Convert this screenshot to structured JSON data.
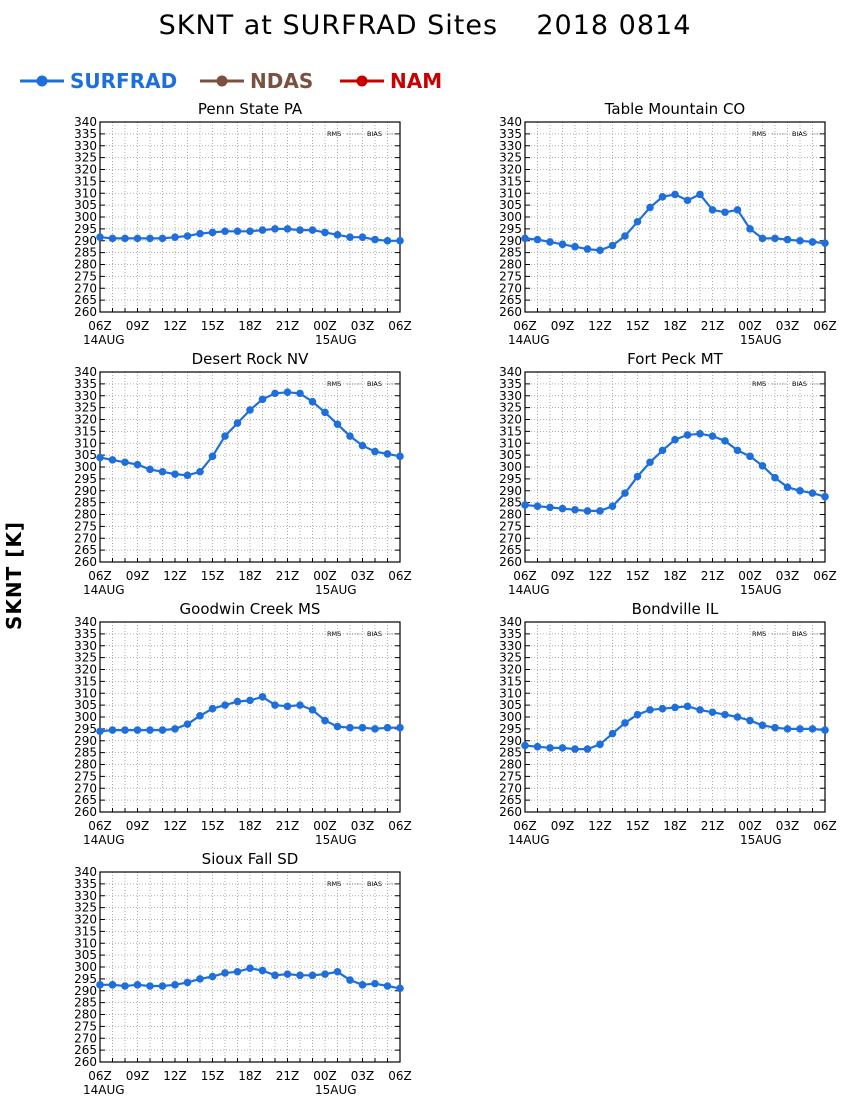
{
  "title": "SKNT at SURFRAD Sites    2018 0814",
  "legend": [
    {
      "label": "SURFRAD",
      "color": "#1e6fdc"
    },
    {
      "label": "NDAS",
      "color": "#7a5040"
    },
    {
      "label": "NAM",
      "color": "#c80000"
    }
  ],
  "y_axis_label": "SKNT [K]",
  "stat_labels": {
    "rms": "RMS",
    "bias": "BIAS"
  },
  "x_ticks": [
    "06Z",
    "09Z",
    "12Z",
    "15Z",
    "18Z",
    "21Z",
    "00Z",
    "03Z",
    "06Z"
  ],
  "x_dates": [
    "14AUG",
    "15AUG"
  ],
  "y_ticks": [
    260,
    265,
    270,
    275,
    280,
    285,
    290,
    295,
    300,
    305,
    310,
    315,
    320,
    325,
    330,
    335,
    340
  ],
  "chart_data": [
    {
      "type": "line",
      "title": "Penn State PA",
      "ylim": [
        260,
        340
      ],
      "grid": true,
      "x_hours": [
        6,
        7,
        8,
        9,
        10,
        11,
        12,
        13,
        14,
        15,
        16,
        17,
        18,
        19,
        20,
        21,
        22,
        23,
        24,
        25,
        26,
        27,
        28,
        29,
        30
      ],
      "series": [
        {
          "name": "SURFRAD",
          "values": [
            291.5,
            291,
            291,
            291,
            291,
            291,
            291.5,
            292,
            293,
            293.5,
            294,
            294,
            294,
            294.5,
            295,
            295,
            294.5,
            294.5,
            293.5,
            292.5,
            291.5,
            291.5,
            290.5,
            290,
            290
          ]
        }
      ]
    },
    {
      "type": "line",
      "title": "Table Mountain CO",
      "ylim": [
        260,
        340
      ],
      "grid": true,
      "x_hours": [
        6,
        7,
        8,
        9,
        10,
        11,
        12,
        13,
        14,
        15,
        16,
        17,
        18,
        19,
        20,
        21,
        22,
        23,
        24,
        25,
        26,
        27,
        28,
        29,
        30
      ],
      "series": [
        {
          "name": "SURFRAD",
          "values": [
            291,
            290.5,
            289.5,
            288.5,
            287.5,
            286.5,
            286,
            288,
            292,
            298,
            304,
            308.5,
            309.5,
            307,
            309.5,
            303,
            302,
            303,
            295,
            291,
            291,
            290.5,
            290,
            289.5,
            289
          ]
        }
      ]
    },
    {
      "type": "line",
      "title": "Desert Rock NV",
      "ylim": [
        260,
        340
      ],
      "grid": true,
      "x_hours": [
        6,
        7,
        8,
        9,
        10,
        11,
        12,
        13,
        14,
        15,
        16,
        17,
        18,
        19,
        20,
        21,
        22,
        23,
        24,
        25,
        26,
        27,
        28,
        29,
        30
      ],
      "series": [
        {
          "name": "SURFRAD",
          "values": [
            304,
            303,
            302,
            301,
            299,
            298,
            297,
            296.5,
            298,
            304.5,
            313,
            318.5,
            324,
            328.5,
            331,
            331.5,
            331,
            327.5,
            323,
            318,
            313,
            309,
            306.5,
            305.5,
            304.5
          ]
        }
      ]
    },
    {
      "type": "line",
      "title": "Fort Peck MT",
      "ylim": [
        260,
        340
      ],
      "grid": true,
      "x_hours": [
        6,
        7,
        8,
        9,
        10,
        11,
        12,
        13,
        14,
        15,
        16,
        17,
        18,
        19,
        20,
        21,
        22,
        23,
        24,
        25,
        26,
        27,
        28,
        29,
        30
      ],
      "series": [
        {
          "name": "SURFRAD",
          "values": [
            284,
            283.5,
            283,
            282.5,
            282,
            281.5,
            281.5,
            283.5,
            289,
            296,
            302,
            307,
            311.5,
            313.5,
            314,
            313,
            311,
            307,
            304.5,
            300.5,
            295.5,
            291.5,
            290,
            289,
            287.5
          ]
        }
      ]
    },
    {
      "type": "line",
      "title": "Goodwin Creek MS",
      "ylim": [
        260,
        340
      ],
      "grid": true,
      "x_hours": [
        6,
        7,
        8,
        9,
        10,
        11,
        12,
        13,
        14,
        15,
        16,
        17,
        18,
        19,
        20,
        21,
        22,
        23,
        24,
        25,
        26,
        27,
        28,
        29,
        30
      ],
      "series": [
        {
          "name": "SURFRAD",
          "values": [
            294,
            294.5,
            294.5,
            294.5,
            294.5,
            294.5,
            295,
            297,
            300.5,
            303.5,
            305,
            306.5,
            307,
            308.5,
            305,
            304.5,
            305,
            303,
            298.5,
            296,
            295.5,
            295.5,
            295,
            295.5,
            295.5
          ]
        }
      ]
    },
    {
      "type": "line",
      "title": "Bondville IL",
      "ylim": [
        260,
        340
      ],
      "grid": true,
      "x_hours": [
        6,
        7,
        8,
        9,
        10,
        11,
        12,
        13,
        14,
        15,
        16,
        17,
        18,
        19,
        20,
        21,
        22,
        23,
        24,
        25,
        26,
        27,
        28,
        29,
        30
      ],
      "series": [
        {
          "name": "SURFRAD",
          "values": [
            288,
            287.5,
            287,
            287,
            286.5,
            286.5,
            288.5,
            293,
            297.5,
            301,
            303,
            303.5,
            304,
            304.5,
            303,
            302,
            301,
            300,
            298.5,
            296.5,
            295.5,
            295,
            295,
            295,
            294.5
          ]
        }
      ]
    },
    {
      "type": "line",
      "title": "Sioux Fall SD",
      "ylim": [
        260,
        340
      ],
      "grid": true,
      "x_hours": [
        6,
        7,
        8,
        9,
        10,
        11,
        12,
        13,
        14,
        15,
        16,
        17,
        18,
        19,
        20,
        21,
        22,
        23,
        24,
        25,
        26,
        27,
        28,
        29,
        30
      ],
      "series": [
        {
          "name": "SURFRAD",
          "values": [
            292.5,
            292.5,
            292,
            292.5,
            292,
            292,
            292.5,
            293.5,
            295,
            296,
            297.5,
            298,
            299.5,
            298.5,
            296.5,
            297,
            296.5,
            296.5,
            297,
            298,
            294.5,
            292.5,
            293,
            292,
            291
          ]
        }
      ]
    }
  ]
}
